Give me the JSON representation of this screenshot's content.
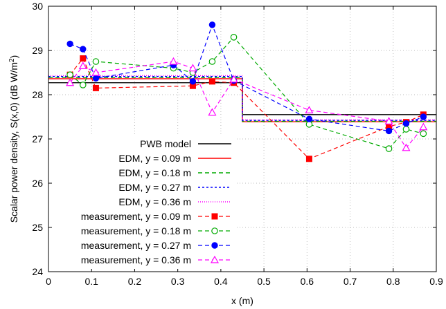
{
  "chart_data": {
    "type": "line",
    "xlabel": "x (m)",
    "ylabel_text": "Scalar power density, S(x,0) (dB W/m",
    "ylabel_sup": "2",
    "ylabel_end": ")",
    "xlim": [
      0,
      0.9
    ],
    "ylim": [
      24,
      30
    ],
    "xticks": [
      "0",
      "0.1",
      "0.2",
      "0.3",
      "0.4",
      "0.5",
      "0.6",
      "0.7",
      "0.8",
      "0.9"
    ],
    "yticks": [
      "24",
      "25",
      "26",
      "27",
      "28",
      "29",
      "30"
    ],
    "grid": true,
    "legend_position": "bottom-left",
    "series": [
      {
        "name": "PWB model",
        "color": "#000000",
        "kind": "step",
        "dash": "solid",
        "marker": "none",
        "x": [
          0,
          0.45,
          0.45,
          0.9
        ],
        "y": [
          28.27,
          28.27,
          27.55,
          27.55
        ]
      },
      {
        "name": "EDM, y = 0.09 m",
        "color": "#ff0000",
        "kind": "step",
        "dash": "solid",
        "marker": "none",
        "x": [
          0,
          0.45,
          0.45,
          0.9
        ],
        "y": [
          28.36,
          28.36,
          27.39,
          27.39
        ]
      },
      {
        "name": "EDM, y = 0.18 m",
        "color": "#00aa00",
        "kind": "step",
        "dash": "dash",
        "marker": "none",
        "x": [
          0,
          0.45,
          0.45,
          0.9
        ],
        "y": [
          28.39,
          28.39,
          27.4,
          27.4
        ]
      },
      {
        "name": "EDM, y = 0.27 m",
        "color": "#0000ff",
        "kind": "step",
        "dash": "dot",
        "marker": "none",
        "x": [
          0,
          0.45,
          0.45,
          0.9
        ],
        "y": [
          28.41,
          28.41,
          27.42,
          27.42
        ]
      },
      {
        "name": "EDM, y = 0.36 m",
        "color": "#ff00ff",
        "kind": "step",
        "dash": "finedot",
        "marker": "none",
        "x": [
          0,
          0.45,
          0.45,
          0.9
        ],
        "y": [
          28.43,
          28.43,
          27.43,
          27.43
        ]
      },
      {
        "name": "measurement, y = 0.09 m",
        "color": "#ff0000",
        "kind": "line",
        "dash": "dash",
        "marker": "square",
        "x": [
          0.05,
          0.08,
          0.11,
          0.335,
          0.38,
          0.43,
          0.605,
          0.79,
          0.83,
          0.87
        ],
        "y": [
          28.45,
          28.82,
          28.15,
          28.2,
          28.3,
          28.27,
          26.55,
          27.28,
          27.38,
          27.55
        ]
      },
      {
        "name": "measurement, y = 0.18 m",
        "color": "#00aa00",
        "kind": "line",
        "dash": "dash",
        "marker": "circle-open",
        "x": [
          0.05,
          0.08,
          0.11,
          0.29,
          0.335,
          0.38,
          0.43,
          0.605,
          0.79,
          0.83,
          0.87
        ],
        "y": [
          28.45,
          28.22,
          28.75,
          28.6,
          28.5,
          28.75,
          29.3,
          27.33,
          26.78,
          27.22,
          27.12
        ]
      },
      {
        "name": "measurement, y = 0.27 m",
        "color": "#0000ff",
        "kind": "line",
        "dash": "dash",
        "marker": "circle-filled",
        "x": [
          0.05,
          0.08,
          0.11,
          0.29,
          0.335,
          0.38,
          0.43,
          0.605,
          0.79,
          0.83,
          0.87
        ],
        "y": [
          29.15,
          29.03,
          28.37,
          28.67,
          28.3,
          29.58,
          28.32,
          27.45,
          27.18,
          27.35,
          27.5
        ]
      },
      {
        "name": "measurement, y = 0.36 m",
        "color": "#ff00ff",
        "kind": "line",
        "dash": "dash",
        "marker": "triangle-open",
        "x": [
          0.05,
          0.08,
          0.11,
          0.29,
          0.335,
          0.38,
          0.43,
          0.605,
          0.79,
          0.83,
          0.87
        ],
        "y": [
          28.27,
          28.65,
          28.5,
          28.75,
          28.6,
          27.6,
          28.35,
          27.65,
          27.4,
          26.8,
          27.27
        ]
      }
    ]
  }
}
